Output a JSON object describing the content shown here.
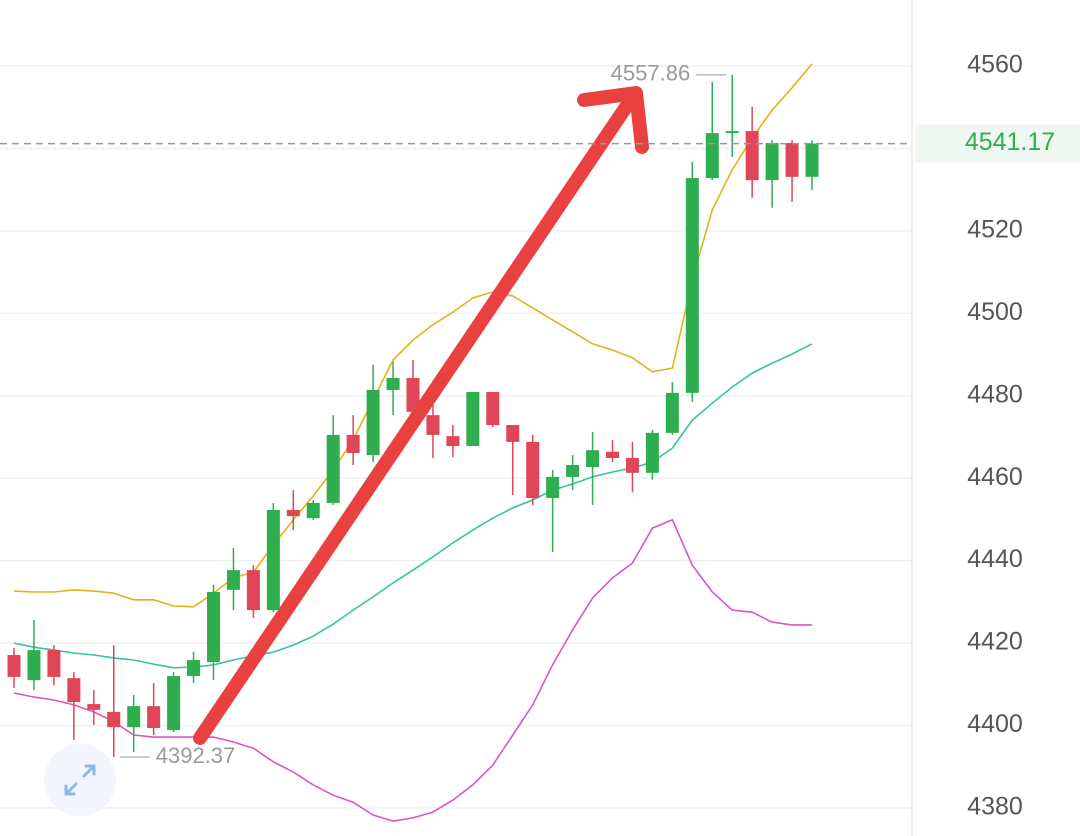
{
  "chart_data": {
    "type": "candlestick",
    "ylim": [
      4373.2,
      4576
    ],
    "yticks": [
      4380,
      4400,
      4420,
      4440,
      4460,
      4480,
      4500,
      4520,
      4540,
      4560
    ],
    "grid": true,
    "up_color": "#2fae4f",
    "down_color": "#e04657",
    "open": [
      4417.1,
      4411.0,
      4418.3,
      4411.5,
      4405.2,
      4403.3,
      4399.6,
      4404.7,
      4398.9,
      4412.0,
      4415.4,
      4432.9,
      4437.7,
      4428.0,
      4452.3,
      4450.3,
      4454.0,
      4470.5,
      4465.6,
      4481.4,
      4484.3,
      4475.3,
      4470.2,
      4467.8,
      4480.9,
      4472.9,
      4468.8,
      4455.2,
      4460.3,
      4462.7,
      4466.4,
      4464.9,
      4461.3,
      4471.0,
      4480.7,
      4532.8,
      4543.7,
      4544.2,
      4532.3,
      4541.3,
      4533.1
    ],
    "high": [
      4418.8,
      4425.6,
      4419.5,
      4413.0,
      4408.6,
      4419.5,
      4407.4,
      4410.3,
      4413.0,
      4417.9,
      4434.1,
      4443.1,
      4438.9,
      4454.0,
      4457.1,
      4454.7,
      4475.3,
      4475.3,
      4487.5,
      4488.2,
      4488.7,
      4477.8,
      4472.9,
      4480.9,
      4480.9,
      4472.9,
      4470.5,
      4462.0,
      4465.6,
      4471.2,
      4469.3,
      4468.8,
      4471.7,
      4483.3,
      4536.7,
      4556.1,
      4557.86,
      4550.1,
      4542.0,
      4542.0,
      4542.0
    ],
    "low": [
      4409.1,
      4408.6,
      4409.8,
      4396.5,
      4400.1,
      4392.37,
      4393.6,
      4397.7,
      4398.4,
      4410.3,
      4411.0,
      4428.0,
      4426.1,
      4427.5,
      4447.4,
      4449.9,
      4453.5,
      4463.2,
      4463.9,
      4475.3,
      4474.6,
      4464.9,
      4465.1,
      4467.8,
      4472.4,
      4455.9,
      4453.5,
      4442.1,
      4457.1,
      4453.5,
      4463.9,
      4456.7,
      4459.6,
      4470.5,
      4478.5,
      4532.3,
      4537.9,
      4528.0,
      4525.6,
      4527.0,
      4529.9
    ],
    "close": [
      4411.8,
      4418.3,
      4411.8,
      4405.7,
      4403.8,
      4399.6,
      4404.7,
      4399.4,
      4412.0,
      4415.9,
      4432.4,
      4437.7,
      4428.0,
      4452.3,
      4450.8,
      4454.0,
      4470.5,
      4466.1,
      4481.4,
      4484.3,
      4476.1,
      4470.5,
      4467.8,
      4480.9,
      4472.9,
      4468.8,
      4455.2,
      4460.3,
      4463.2,
      4466.8,
      4464.9,
      4461.3,
      4471.0,
      4480.7,
      4532.8,
      4543.7,
      4544.2,
      4532.3,
      4541.3,
      4533.1,
      4541.17
    ],
    "lines": [
      {
        "color": "#e8b019",
        "values": [
          4432.6,
          4432.4,
          4432.4,
          4432.9,
          4432.6,
          4432.1,
          4430.5,
          4430.5,
          4429.0,
          4428.8,
          4432.1,
          4435.8,
          4437.2,
          4443.8,
          4449.9,
          4455.7,
          4462.0,
          4469.3,
          4479.0,
          4488.7,
          4493.5,
          4497.2,
          4500.3,
          4503.7,
          4505.2,
          4504.2,
          4501.3,
          4498.4,
          4495.5,
          4492.6,
          4491.1,
          4489.2,
          4485.8,
          4486.7,
          4508.1,
          4525.1,
          4534.8,
          4542.5,
          4549.3,
          4554.7,
          4560.5
        ]
      },
      {
        "color": "#33c4a6",
        "values": [
          4420.0,
          4419.0,
          4418.3,
          4417.6,
          4417.1,
          4416.4,
          4415.9,
          4414.9,
          4414.0,
          4414.2,
          4414.7,
          4415.9,
          4416.9,
          4417.8,
          4419.5,
          4421.7,
          4424.6,
          4428.0,
          4431.2,
          4434.6,
          4437.7,
          4440.9,
          4444.3,
          4447.4,
          4450.3,
          4452.8,
          4454.7,
          4457.1,
          4458.6,
          4460.3,
          4461.5,
          4462.5,
          4463.9,
          4467.3,
          4474.1,
          4478.2,
          4482.1,
          4485.5,
          4487.9,
          4490.1,
          4492.6
        ]
      },
      {
        "color": "#d957c0",
        "values": [
          4407.9,
          4406.9,
          4406.2,
          4405.0,
          4403.3,
          4400.9,
          4397.7,
          4397.2,
          4397.2,
          4397.2,
          4397.2,
          4396.0,
          4394.5,
          4391.2,
          4388.7,
          4385.6,
          4383.1,
          4381.4,
          4378.3,
          4376.8,
          4377.6,
          4379.0,
          4381.9,
          4385.6,
          4390.4,
          4397.7,
          4405.0,
          4414.7,
          4423.2,
          4430.9,
          4435.8,
          4439.4,
          4447.9,
          4449.9,
          4438.9,
          4432.4,
          4428.0,
          4427.5,
          4425.1,
          4424.4,
          4424.4
        ]
      }
    ],
    "last_price": 4541.17,
    "last_price_color": "#2fae4f"
  }
}
